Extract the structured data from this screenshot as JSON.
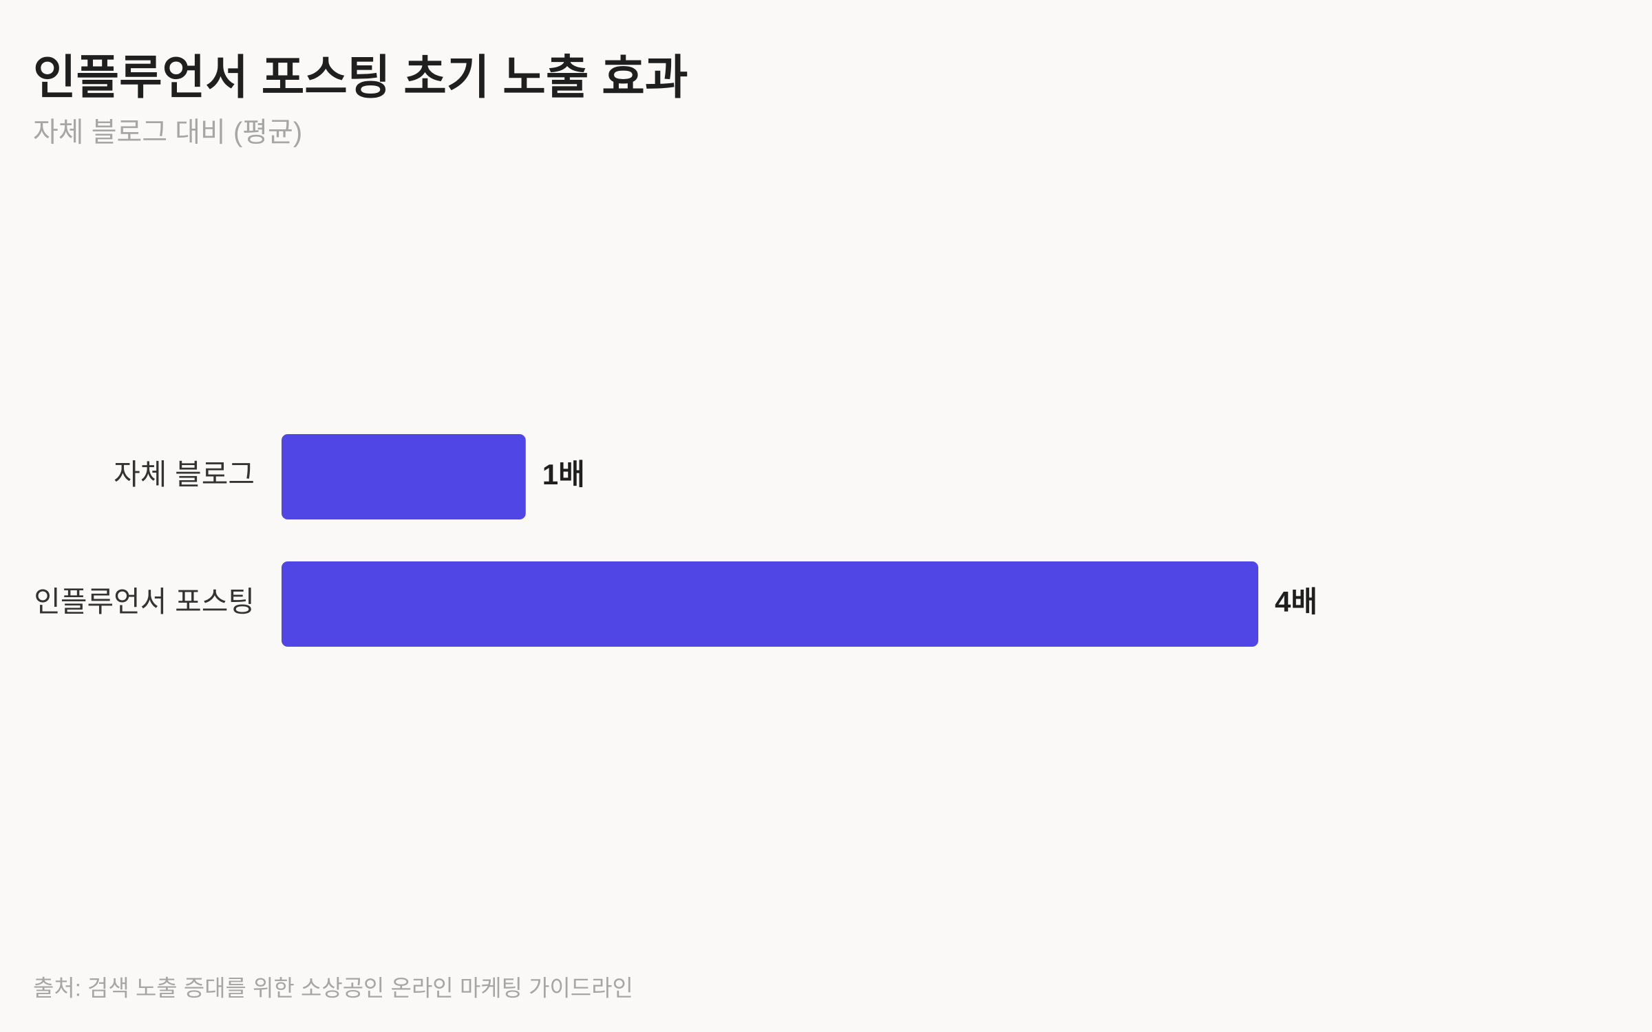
{
  "chart_data": {
    "type": "bar",
    "title": "인플루언서 포스팅 초기 노출 효과",
    "subtitle": "자체 블로그 대비 (평균)",
    "categories": [
      "자체 블로그",
      "인플루언서 포스팅"
    ],
    "values": [
      1,
      4
    ],
    "value_labels": [
      "1배",
      "4배"
    ],
    "color": "#5046e5",
    "source": "출처: 검색 노출 증대를 위한 소상공인 온라인 마케팅 가이드라인"
  }
}
